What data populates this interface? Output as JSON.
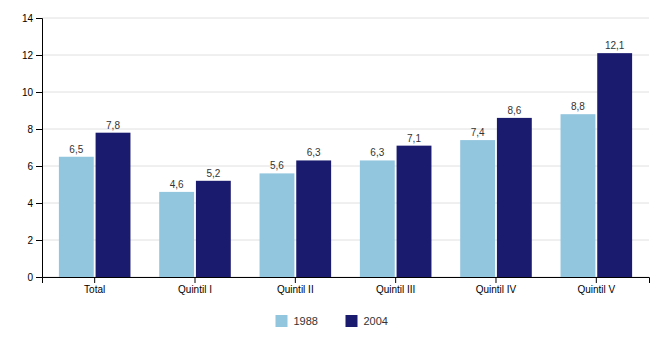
{
  "chart_data": {
    "type": "bar",
    "categories": [
      "Total",
      "Quintil I",
      "Quintil II",
      "Quintil III",
      "Quintil IV",
      "Quintil V"
    ],
    "series": [
      {
        "name": "1988",
        "color": "#92c5de",
        "values": [
          6.5,
          4.6,
          5.6,
          6.3,
          7.4,
          8.8
        ],
        "value_labels": [
          "6,5",
          "4,6",
          "5,6",
          "6,3",
          "7,4",
          "8,8"
        ]
      },
      {
        "name": "2004",
        "color": "#1a1a6e",
        "values": [
          7.8,
          5.2,
          6.3,
          7.1,
          8.6,
          12.1
        ],
        "value_labels": [
          "7,8",
          "5,2",
          "6,3",
          "7,1",
          "8,6",
          "12,1"
        ]
      }
    ],
    "ylim": [
      0,
      14
    ],
    "yticks": [
      0,
      2,
      4,
      6,
      8,
      10,
      12,
      14
    ],
    "grid": true,
    "data_labels": true,
    "legend": "bottom"
  }
}
